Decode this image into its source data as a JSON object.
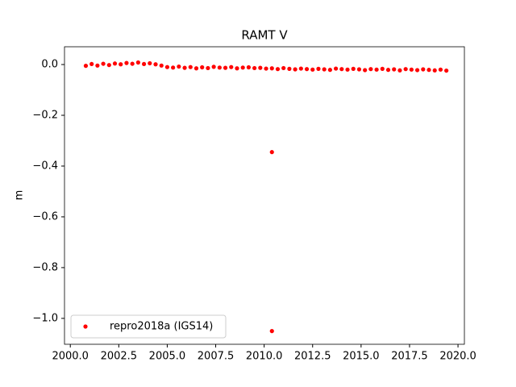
{
  "chart_data": {
    "type": "scatter",
    "title": "RAMT V",
    "ylabel": "m",
    "series": [
      {
        "name": "repro2018a (IGS14)",
        "color": "#ff0000",
        "x": [
          2000.8,
          2001.1,
          2001.4,
          2001.7,
          2002.0,
          2002.3,
          2002.6,
          2002.9,
          2003.2,
          2003.5,
          2003.8,
          2004.1,
          2004.4,
          2004.7,
          2005.0,
          2005.3,
          2005.6,
          2005.9,
          2006.2,
          2006.5,
          2006.8,
          2007.1,
          2007.4,
          2007.7,
          2008.0,
          2008.3,
          2008.6,
          2008.9,
          2009.2,
          2009.5,
          2009.8,
          2010.1,
          2010.4,
          2010.7,
          2011.0,
          2011.3,
          2011.6,
          2011.9,
          2012.2,
          2012.5,
          2012.8,
          2013.1,
          2013.4,
          2013.7,
          2014.0,
          2014.3,
          2014.6,
          2014.9,
          2015.2,
          2015.5,
          2015.8,
          2016.1,
          2016.4,
          2016.7,
          2017.0,
          2017.3,
          2017.6,
          2017.9,
          2018.2,
          2018.5,
          2018.8,
          2019.1,
          2019.4,
          2010.4,
          2010.4
        ],
        "values": [
          -0.005,
          0.002,
          -0.004,
          0.003,
          -0.002,
          0.004,
          0.001,
          0.006,
          0.003,
          0.008,
          0.002,
          0.005,
          0.001,
          -0.004,
          -0.01,
          -0.012,
          -0.008,
          -0.013,
          -0.01,
          -0.015,
          -0.011,
          -0.014,
          -0.009,
          -0.012,
          -0.013,
          -0.01,
          -0.015,
          -0.012,
          -0.011,
          -0.014,
          -0.013,
          -0.016,
          -0.015,
          -0.018,
          -0.014,
          -0.017,
          -0.019,
          -0.016,
          -0.018,
          -0.02,
          -0.017,
          -0.019,
          -0.021,
          -0.016,
          -0.018,
          -0.02,
          -0.017,
          -0.019,
          -0.022,
          -0.018,
          -0.02,
          -0.017,
          -0.021,
          -0.019,
          -0.023,
          -0.018,
          -0.02,
          -0.022,
          -0.019,
          -0.021,
          -0.023,
          -0.02,
          -0.024,
          -0.345,
          -1.05
        ]
      }
    ],
    "xlim": [
      1999.7,
      2020.33
    ],
    "ylim": [
      -1.102,
      0.07
    ],
    "xticks": [
      {
        "value": 2000,
        "label": "2000.0"
      },
      {
        "value": 2002.5,
        "label": "2002.5"
      },
      {
        "value": 2005,
        "label": "2005.0"
      },
      {
        "value": 2007.5,
        "label": "2007.5"
      },
      {
        "value": 2010,
        "label": "2010.0"
      },
      {
        "value": 2012.5,
        "label": "2012.5"
      },
      {
        "value": 2015,
        "label": "2015.0"
      },
      {
        "value": 2017.5,
        "label": "2017.5"
      },
      {
        "value": 2020,
        "label": "2020.0"
      }
    ],
    "yticks": [
      {
        "value": 0,
        "label": "0.0"
      },
      {
        "value": -0.2,
        "label": "−0.2"
      },
      {
        "value": -0.4,
        "label": "−0.4"
      },
      {
        "value": -0.6,
        "label": "−0.6"
      },
      {
        "value": -0.8,
        "label": "−0.8"
      },
      {
        "value": -1.0,
        "label": "−1.0"
      }
    ],
    "legend": "lower left",
    "grid": false
  }
}
